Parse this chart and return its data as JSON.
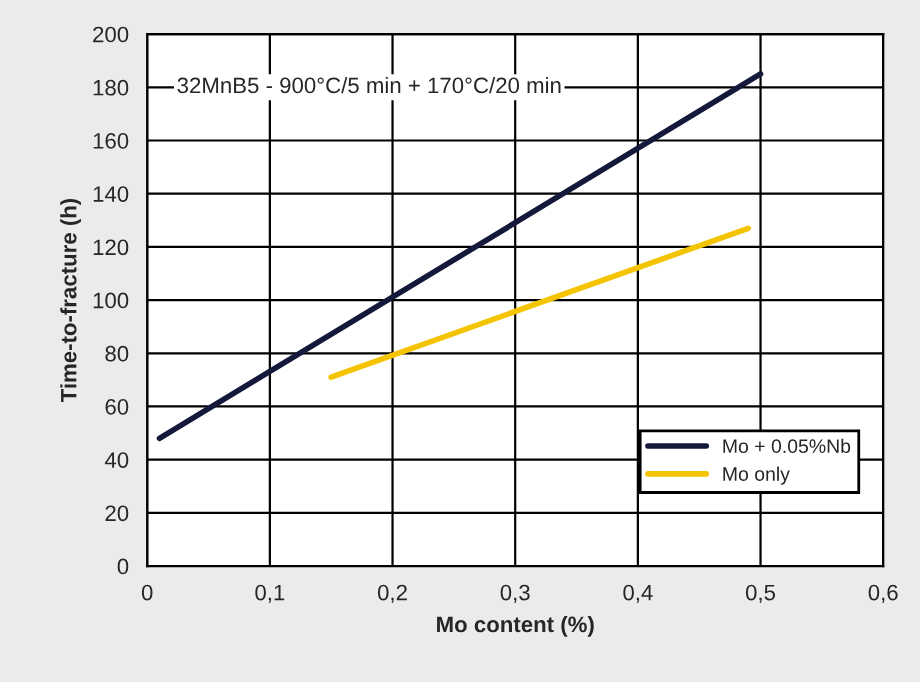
{
  "chart_data": {
    "type": "line",
    "xlabel": "Mo content (%)",
    "ylabel": "Time-to-fracture (h)",
    "annotations": [
      "32MnB5 - 900°C/5 min + 170°C/20 min"
    ],
    "series": [
      {
        "name": "Mo + 0.05%Nb",
        "color": "#14183a",
        "x": [
          0.01,
          0.5
        ],
        "values": [
          48,
          185
        ]
      },
      {
        "name": "Mo only",
        "color": "#f5c400",
        "x": [
          0.15,
          0.49
        ],
        "values": [
          71,
          127
        ]
      }
    ],
    "xlim": [
      0,
      0.6
    ],
    "xticks": [
      0,
      {
        "value": 0.1,
        "label": "0,1"
      },
      {
        "value": 0.2,
        "label": "0,2"
      },
      {
        "value": 0.3,
        "label": "0,3"
      },
      {
        "value": 0.4,
        "label": "0,4"
      },
      {
        "value": 0.5,
        "label": "0,5"
      },
      {
        "value": 0.6,
        "label": "0,6"
      }
    ],
    "ylim": [
      0,
      200
    ],
    "yticks": [
      0,
      20,
      40,
      60,
      80,
      100,
      120,
      140,
      160,
      180,
      200
    ],
    "grid": true,
    "legend": "bottom right",
    "marker": "none",
    "line_style": "solid"
  }
}
